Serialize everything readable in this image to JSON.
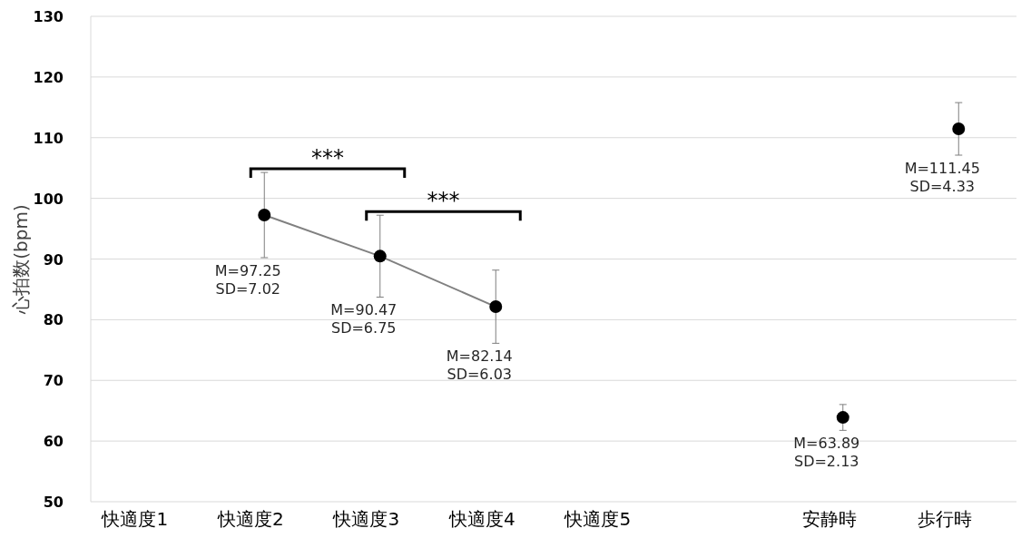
{
  "chart_data": {
    "type": "line",
    "ylabel": "心拍数(bpm)",
    "categories": [
      "快適度1",
      "快適度2",
      "快適度3",
      "快適度4",
      "快適度5",
      null,
      "安静時",
      "歩行時"
    ],
    "series": [
      {
        "color": "#000000",
        "values": [
          null,
          97.25,
          90.47,
          82.14,
          null,
          null,
          null,
          null
        ],
        "errors": [
          null,
          7.02,
          6.75,
          6.03,
          null,
          null,
          null,
          null
        ]
      },
      {
        "type": "scatter",
        "color": "#000000",
        "values": [
          null,
          null,
          null,
          null,
          null,
          null,
          63.89,
          111.45
        ],
        "errors": [
          null,
          null,
          null,
          null,
          null,
          null,
          2.13,
          4.33
        ]
      }
    ],
    "ylim": [
      50,
      130
    ],
    "yticks": [
      50,
      60,
      70,
      80,
      90,
      100,
      110,
      120,
      130
    ],
    "grid": "y",
    "marker": "circle",
    "annotations": [
      "M=97.25\nSD=7.02",
      "M=90.47\nSD=6.75",
      "M=82.14\nSD=6.03",
      "M=63.89\nSD=2.13",
      "M=111.45\nSD=4.33",
      "***",
      "***"
    ]
  }
}
